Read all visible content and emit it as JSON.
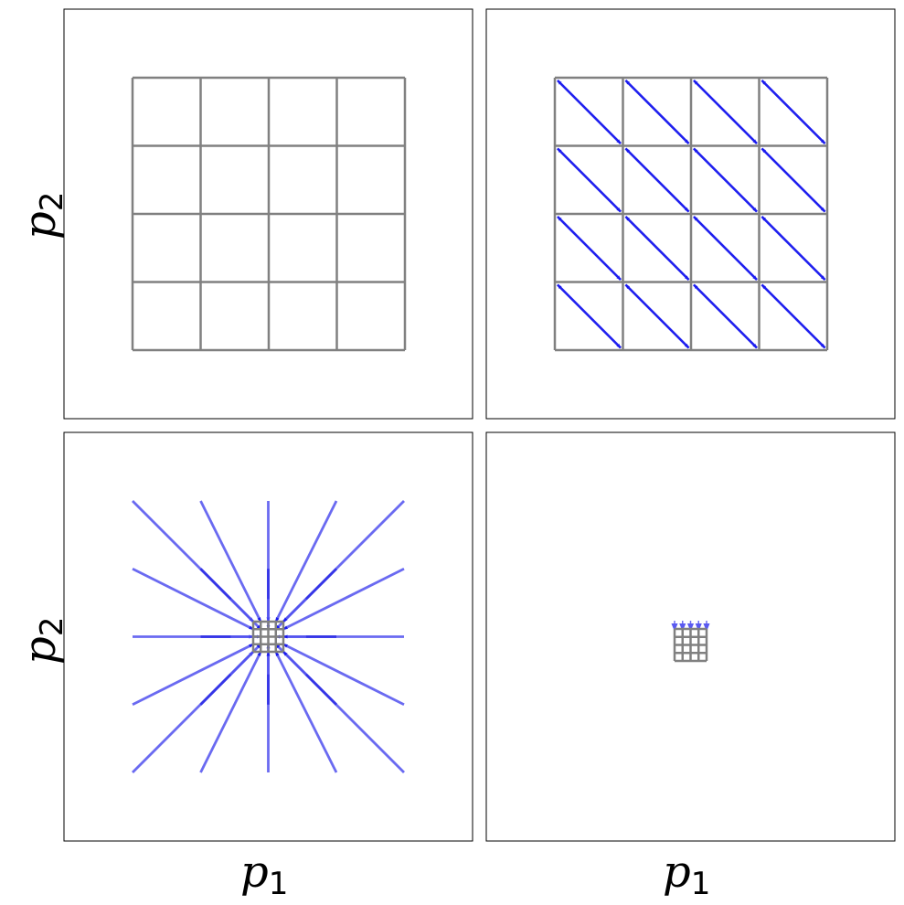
{
  "labels": {
    "y_sym": "p",
    "y_sub": "2",
    "x_sym": "p",
    "x_sub": "1"
  },
  "colors": {
    "grid": "#808080",
    "arrow": "#1a1aee",
    "arrow_faded": "#6868f0",
    "frame": "#000000"
  },
  "panels": [
    {
      "name": "panel-original-grid",
      "transform": "none"
    },
    {
      "name": "panel-shear-flow",
      "transform": "diagonal-displacement"
    },
    {
      "name": "panel-contraction",
      "transform": "radial-contraction"
    },
    {
      "name": "panel-collapsed",
      "transform": "collapse-to-small-grid"
    }
  ]
}
